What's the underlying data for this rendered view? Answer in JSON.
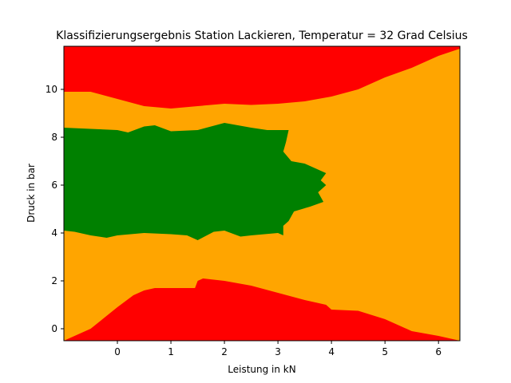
{
  "chart_data": {
    "type": "area",
    "title": "Klassifizierungsergebnis Station Lackieren, Temperatur = 32 Grad Celsius",
    "xlabel": "Leistung in kN",
    "ylabel": "Druck in bar",
    "xlim": [
      -1.0,
      6.4
    ],
    "ylim": [
      -0.5,
      11.8
    ],
    "xticks": [
      0,
      1,
      2,
      3,
      4,
      5,
      6
    ],
    "yticks": [
      0,
      2,
      4,
      6,
      8,
      10
    ],
    "colors": {
      "red": "#ff0000",
      "orange": "#ffa500",
      "green": "#008000"
    },
    "regions": {
      "bottom_red_upper_boundary": {
        "x": [
          -1.0,
          -0.7,
          -0.5,
          0.0,
          0.3,
          0.5,
          0.7,
          1.0,
          1.3,
          1.45,
          1.5,
          1.6,
          2.0,
          2.5,
          3.0,
          3.5,
          3.9,
          4.0,
          4.5,
          5.0,
          5.5,
          6.0,
          6.4
        ],
        "y": [
          -0.5,
          -0.2,
          0.0,
          0.9,
          1.4,
          1.6,
          1.7,
          1.7,
          1.7,
          1.7,
          2.0,
          2.1,
          2.0,
          1.8,
          1.5,
          1.2,
          1.0,
          0.8,
          0.75,
          0.4,
          -0.1,
          -0.3,
          -0.5
        ]
      },
      "top_red_lower_boundary": {
        "x": [
          -1.0,
          -0.5,
          0.0,
          0.5,
          1.0,
          1.5,
          2.0,
          2.5,
          3.0,
          3.5,
          4.0,
          4.5,
          5.0,
          5.5,
          6.0,
          6.4
        ],
        "y": [
          9.9,
          9.9,
          9.6,
          9.3,
          9.2,
          9.3,
          9.4,
          9.35,
          9.4,
          9.5,
          9.7,
          10.0,
          10.5,
          10.9,
          11.4,
          11.7
        ]
      },
      "green_upper_boundary": {
        "x": [
          -1.0,
          -0.5,
          0.0,
          0.2,
          0.5,
          0.7,
          1.0,
          1.5,
          2.0,
          2.5,
          2.8,
          3.0,
          3.1,
          3.2
        ],
        "y": [
          8.4,
          8.35,
          8.3,
          8.2,
          8.45,
          8.5,
          8.25,
          8.3,
          8.6,
          8.4,
          8.3,
          8.3,
          8.3,
          8.3
        ]
      },
      "green_right_boundary": {
        "x": [
          3.2,
          3.15,
          3.1,
          3.25,
          3.5,
          3.7,
          3.9,
          3.8,
          3.9,
          3.75,
          3.85,
          3.6,
          3.3,
          3.2,
          3.1,
          3.1
        ],
        "y": [
          8.3,
          7.8,
          7.4,
          7.0,
          6.9,
          6.7,
          6.5,
          6.2,
          6.0,
          5.7,
          5.3,
          5.1,
          4.9,
          4.5,
          4.3,
          3.9
        ]
      },
      "green_lower_boundary": {
        "x": [
          3.1,
          3.0,
          2.5,
          2.3,
          2.0,
          1.8,
          1.5,
          1.3,
          1.0,
          0.5,
          0.0,
          -0.2,
          -0.5,
          -0.8,
          -1.0
        ],
        "y": [
          3.9,
          4.0,
          3.9,
          3.85,
          4.1,
          4.05,
          3.7,
          3.9,
          3.95,
          4.0,
          3.9,
          3.8,
          3.9,
          4.05,
          4.1
        ]
      }
    }
  }
}
